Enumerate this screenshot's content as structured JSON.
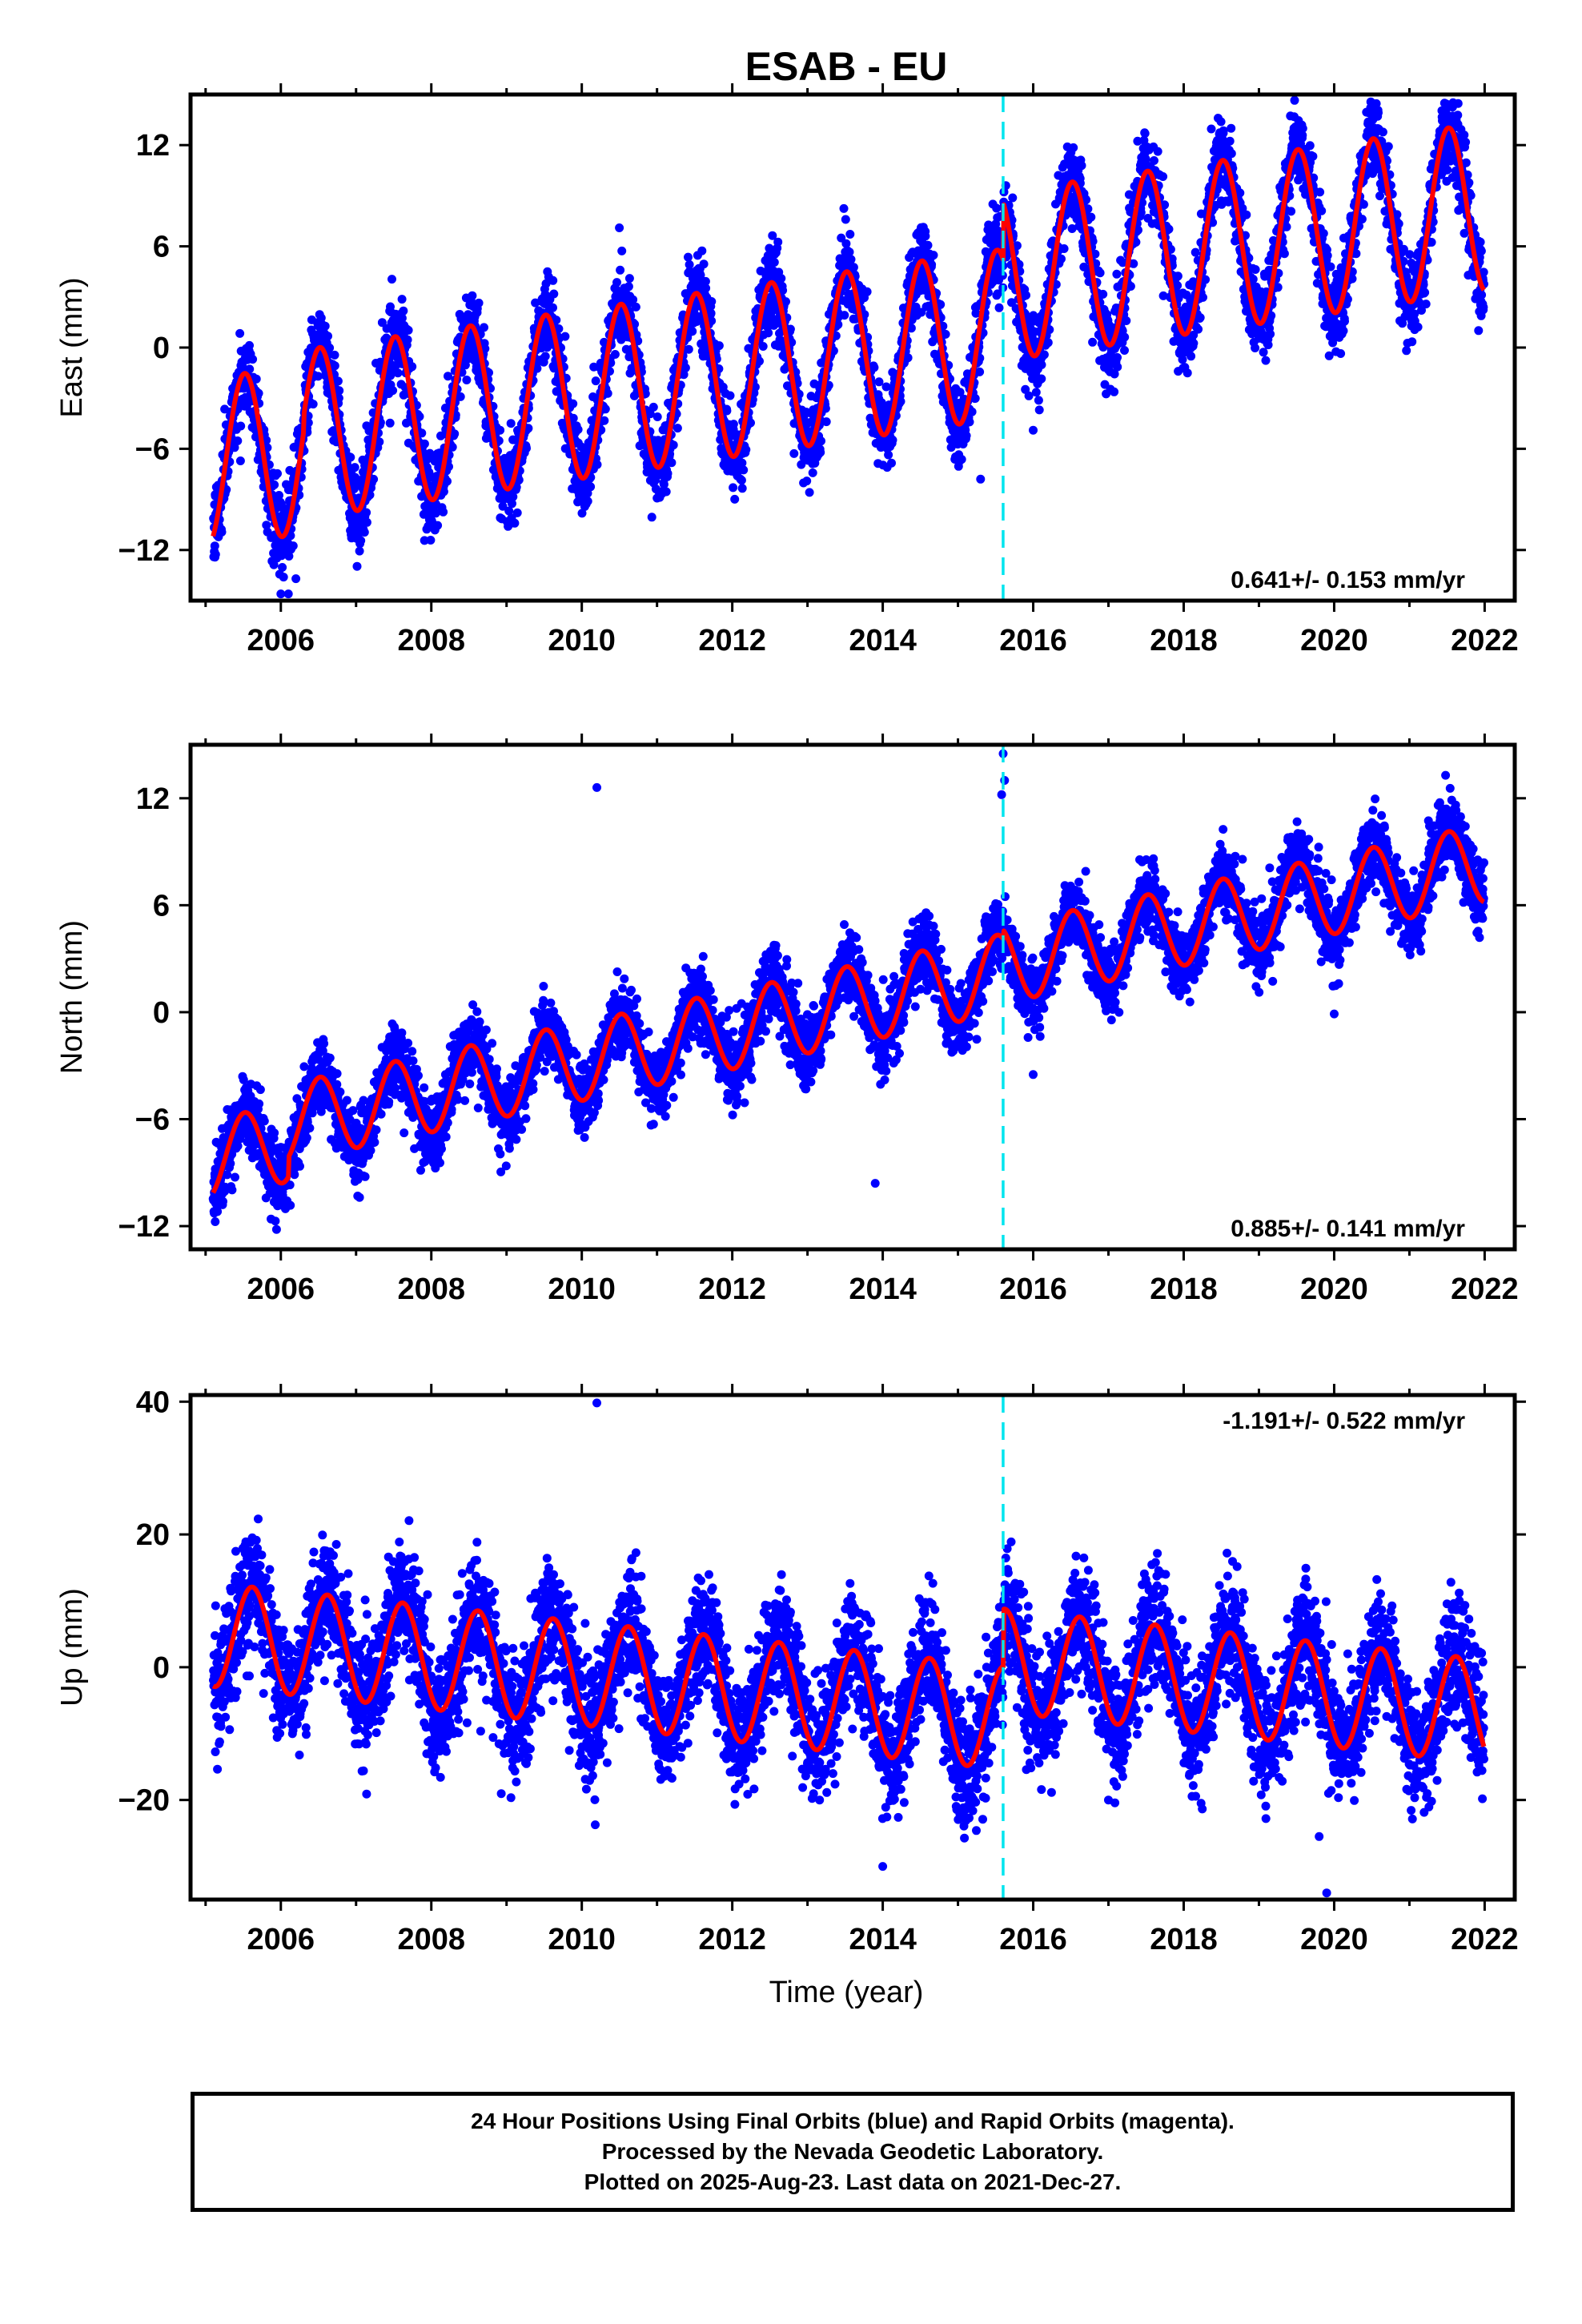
{
  "figure": {
    "title": "ESAB - EU",
    "xlabel": "Time (year)"
  },
  "colors": {
    "points": "#0000ff",
    "model": "#ff0000",
    "offset_line": "#00e5ee",
    "frame": "#000000"
  },
  "chart_data": [
    {
      "type": "scatter",
      "name": "east",
      "ylabel": "East (mm)",
      "xlim": [
        2004.8,
        2022.4
      ],
      "ylim": [
        -15,
        15
      ],
      "yticks": [
        -12,
        -6,
        0,
        6,
        12
      ],
      "xticks": [
        2006,
        2008,
        2010,
        2012,
        2014,
        2016,
        2018,
        2020,
        2022
      ],
      "rate": "0.641+/- 0.153 mm/yr",
      "rate_position": "bottom-right",
      "offset_epoch": 2015.6,
      "data_span": [
        2005.1,
        2021.99
      ],
      "model": {
        "intercept": -5.9,
        "reference_epoch": 2005.1,
        "slope": 0.641,
        "step_at_offset": 3.4,
        "amplitude": 5.0,
        "peak_phase": 0.52,
        "extra_early": [
          2005.1,
          2006.3,
          -0.9
        ]
      },
      "scatter_spread": 1.2,
      "outliers": [
        [
          2006.0,
          -14.6
        ],
        [
          2006.1,
          -14.6
        ],
        [
          2006.2,
          -13.7
        ],
        [
          2016.0,
          -4.9
        ],
        [
          2015.3,
          -7.8
        ]
      ]
    },
    {
      "type": "scatter",
      "name": "north",
      "ylabel": "North (mm)",
      "xlim": [
        2004.8,
        2022.4
      ],
      "ylim": [
        -13.3,
        15
      ],
      "yticks": [
        -12,
        -6,
        0,
        6,
        12
      ],
      "xticks": [
        2006,
        2008,
        2010,
        2012,
        2014,
        2016,
        2018,
        2020,
        2022
      ],
      "rate": "0.885+/- 0.141 mm/yr",
      "rate_position": "bottom-right",
      "offset_epoch": 2015.6,
      "data_span": [
        2005.1,
        2021.99
      ],
      "model": {
        "intercept": -7.1,
        "reference_epoch": 2005.1,
        "slope": 0.885,
        "step_at_offset": 0.5,
        "amplitude": 2.2,
        "peak_phase": 0.52,
        "extra_early": [
          2005.1,
          2006.1,
          -1.1
        ]
      },
      "scatter_spread": 1.0,
      "outliers": [
        [
          2010.2,
          12.6
        ],
        [
          2013.9,
          -9.6
        ],
        [
          2015.6,
          14.5
        ],
        [
          2015.62,
          13.0
        ],
        [
          2015.58,
          12.2
        ],
        [
          2016.0,
          -3.5
        ],
        [
          2020.0,
          -0.1
        ]
      ]
    },
    {
      "type": "scatter",
      "name": "up",
      "ylabel": "Up (mm)",
      "xlim": [
        2004.8,
        2022.4
      ],
      "ylim": [
        -35,
        41
      ],
      "yticks": [
        -20,
        0,
        20,
        40
      ],
      "xticks": [
        2006,
        2008,
        2010,
        2012,
        2014,
        2016,
        2018,
        2020,
        2022
      ],
      "rate": "-1.191+/- 0.522 mm/yr",
      "rate_position": "top-right",
      "offset_epoch": 2015.6,
      "data_span": [
        2005.1,
        2021.99
      ],
      "model": {
        "intercept": 4.9,
        "reference_epoch": 2005.1,
        "slope": -1.191,
        "step_at_offset": 8.6,
        "amplitude": 7.8,
        "peak_phase": 0.62,
        "extra_early": [
          2005.1,
          2005.1,
          0
        ]
      },
      "scatter_spread": 4.5,
      "outliers": [
        [
          2010.2,
          39.8
        ],
        [
          2017.0,
          -20.0
        ],
        [
          2019.8,
          -25.5
        ],
        [
          2019.9,
          -34.0
        ],
        [
          2014.0,
          -30.0
        ]
      ]
    }
  ],
  "caption": {
    "line1": "24 Hour Positions Using Final Orbits (blue) and Rapid Orbits (magenta).",
    "line2": "Processed by the Nevada Geodetic Laboratory.",
    "line3": "Plotted on 2025-Aug-23. Last data on 2021-Dec-27."
  }
}
